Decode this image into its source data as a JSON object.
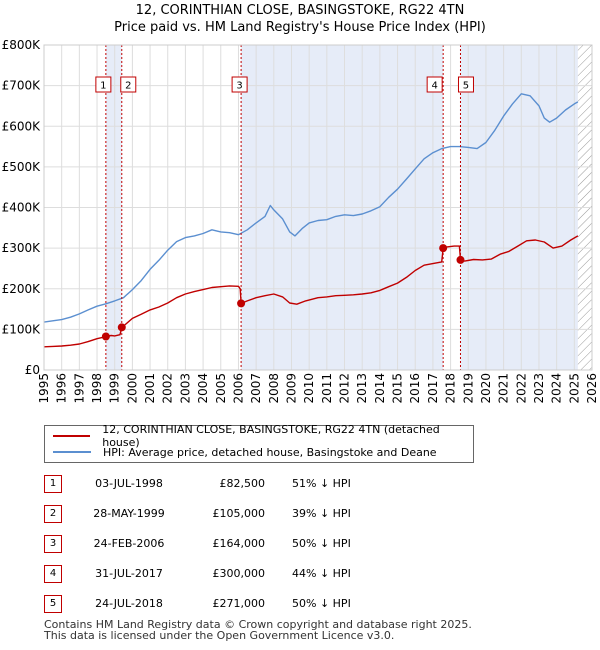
{
  "title_line1": "12, CORINTHIAN CLOSE, BASINGSTOKE, RG22 4TN",
  "title_line2": "Price paid vs. HM Land Registry's House Price Index (HPI)",
  "colors": {
    "property_line": "#c00000",
    "hpi_line": "#5b8fd0",
    "shade": "#e6ecf8",
    "vline": "#c00000",
    "future_hatch": "#999999",
    "grid": "#dddddd"
  },
  "chart_data": {
    "type": "line",
    "title": "Price paid vs. HM Land Registry's House Price Index (HPI)",
    "xlabel": "",
    "ylabel": "",
    "xlim": [
      1995,
      2026
    ],
    "ylim": [
      0,
      800000
    ],
    "y_ticks": [
      {
        "value": 0,
        "label": "£0"
      },
      {
        "value": 100000,
        "label": "£100K"
      },
      {
        "value": 200000,
        "label": "£200K"
      },
      {
        "value": 300000,
        "label": "£300K"
      },
      {
        "value": 400000,
        "label": "£400K"
      },
      {
        "value": 500000,
        "label": "£500K"
      },
      {
        "value": 600000,
        "label": "£600K"
      },
      {
        "value": 700000,
        "label": "£700K"
      },
      {
        "value": 800000,
        "label": "£800K"
      }
    ],
    "x_ticks": [
      "1995",
      "1996",
      "1997",
      "1998",
      "1999",
      "2000",
      "2001",
      "2002",
      "2003",
      "2004",
      "2005",
      "2006",
      "2007",
      "2008",
      "2009",
      "2010",
      "2011",
      "2012",
      "2013",
      "2014",
      "2015",
      "2016",
      "2017",
      "2018",
      "2019",
      "2020",
      "2021",
      "2022",
      "2023",
      "2024",
      "2025",
      "2026"
    ],
    "future_from": 2025.2,
    "shaded_ranges": [
      [
        1998.5,
        1999.4
      ],
      [
        2006.15,
        2017.58
      ],
      [
        2018.56,
        2025.2
      ]
    ],
    "series": [
      {
        "name": "12, CORINTHIAN CLOSE, BASINGSTOKE, RG22 4TN (detached house)",
        "color": "#c00000",
        "x": [
          1995.0,
          1995.5,
          1996.0,
          1996.5,
          1997.0,
          1997.5,
          1998.0,
          1998.4,
          1998.5,
          1998.8,
          1999.0,
          1999.3,
          1999.4,
          1999.6,
          2000.0,
          2000.5,
          2001.0,
          2001.5,
          2002.0,
          2002.5,
          2003.0,
          2003.5,
          2004.0,
          2004.5,
          2005.0,
          2005.5,
          2006.0,
          2006.1,
          2006.15,
          2006.5,
          2007.0,
          2007.5,
          2008.0,
          2008.5,
          2008.9,
          2009.3,
          2009.8,
          2010.5,
          2011.0,
          2011.5,
          2012.0,
          2012.5,
          2013.0,
          2013.5,
          2014.0,
          2014.5,
          2015.0,
          2015.5,
          2016.0,
          2016.5,
          2017.0,
          2017.5,
          2017.58,
          2017.8,
          2018.2,
          2018.5,
          2018.56,
          2018.8,
          2019.3,
          2019.8,
          2020.3,
          2020.8,
          2021.3,
          2021.8,
          2022.3,
          2022.8,
          2023.3,
          2023.8,
          2024.3,
          2024.8,
          2025.2
        ],
        "y": [
          57000,
          58000,
          59000,
          61000,
          64000,
          70000,
          77000,
          81000,
          82500,
          85000,
          84000,
          87000,
          105000,
          112000,
          127000,
          137000,
          148000,
          155000,
          165000,
          178000,
          187000,
          193000,
          198000,
          203000,
          205000,
          207000,
          206000,
          200000,
          164000,
          170000,
          178000,
          183000,
          187000,
          180000,
          165000,
          162000,
          170000,
          178000,
          180000,
          183000,
          184000,
          185000,
          187000,
          190000,
          196000,
          205000,
          214000,
          228000,
          245000,
          258000,
          262000,
          266000,
          300000,
          303000,
          305000,
          305000,
          271000,
          268000,
          272000,
          271000,
          273000,
          285000,
          292000,
          305000,
          318000,
          320000,
          315000,
          300000,
          305000,
          320000,
          330000
        ]
      },
      {
        "name": "HPI: Average price, detached house, Basingstoke and Deane",
        "color": "#5b8fd0",
        "x": [
          1995.0,
          1995.5,
          1996.0,
          1996.5,
          1997.0,
          1997.5,
          1998.0,
          1998.5,
          1999.0,
          1999.5,
          2000.0,
          2000.5,
          2001.0,
          2001.5,
          2002.0,
          2002.5,
          2003.0,
          2003.5,
          2004.0,
          2004.5,
          2005.0,
          2005.5,
          2006.0,
          2006.5,
          2007.0,
          2007.5,
          2007.8,
          2008.0,
          2008.5,
          2008.9,
          2009.2,
          2009.6,
          2010.0,
          2010.5,
          2011.0,
          2011.5,
          2012.0,
          2012.5,
          2013.0,
          2013.5,
          2014.0,
          2014.5,
          2015.0,
          2015.5,
          2016.0,
          2016.5,
          2017.0,
          2017.5,
          2018.0,
          2018.5,
          2019.0,
          2019.5,
          2020.0,
          2020.5,
          2021.0,
          2021.5,
          2022.0,
          2022.5,
          2023.0,
          2023.3,
          2023.6,
          2024.0,
          2024.5,
          2025.0,
          2025.2
        ],
        "y": [
          118000,
          121000,
          124000,
          130000,
          138000,
          148000,
          157000,
          163000,
          170000,
          178000,
          198000,
          220000,
          248000,
          270000,
          295000,
          316000,
          326000,
          330000,
          336000,
          345000,
          340000,
          338000,
          333000,
          345000,
          362000,
          378000,
          405000,
          394000,
          372000,
          340000,
          330000,
          348000,
          362000,
          368000,
          370000,
          378000,
          382000,
          380000,
          384000,
          392000,
          402000,
          425000,
          445000,
          470000,
          495000,
          520000,
          535000,
          545000,
          550000,
          550000,
          548000,
          545000,
          560000,
          590000,
          625000,
          655000,
          680000,
          675000,
          650000,
          620000,
          610000,
          620000,
          640000,
          655000,
          660000
        ]
      }
    ],
    "sales": [
      {
        "num": "1",
        "x": 1998.5,
        "y": 82500,
        "date": "03-JUL-1998",
        "price": "£82,500",
        "hpi": "51% ↓ HPI"
      },
      {
        "num": "2",
        "x": 1999.4,
        "y": 105000,
        "date": "28-MAY-1999",
        "price": "£105,000",
        "hpi": "39% ↓ HPI"
      },
      {
        "num": "3",
        "x": 2006.15,
        "y": 164000,
        "date": "24-FEB-2006",
        "price": "£164,000",
        "hpi": "50% ↓ HPI"
      },
      {
        "num": "4",
        "x": 2017.58,
        "y": 300000,
        "date": "31-JUL-2017",
        "price": "£300,000",
        "hpi": "44% ↓ HPI"
      },
      {
        "num": "5",
        "x": 2018.56,
        "y": 271000,
        "date": "24-JUL-2018",
        "price": "£271,000",
        "hpi": "50% ↓ HPI"
      }
    ]
  },
  "legend": {
    "property_label": "12, CORINTHIAN CLOSE, BASINGSTOKE, RG22 4TN (detached house)",
    "hpi_label": "HPI: Average price, detached house, Basingstoke and Deane"
  },
  "footer": {
    "line1": "Contains HM Land Registry data © Crown copyright and database right 2025.",
    "line2": "This data is licensed under the Open Government Licence v3.0."
  }
}
